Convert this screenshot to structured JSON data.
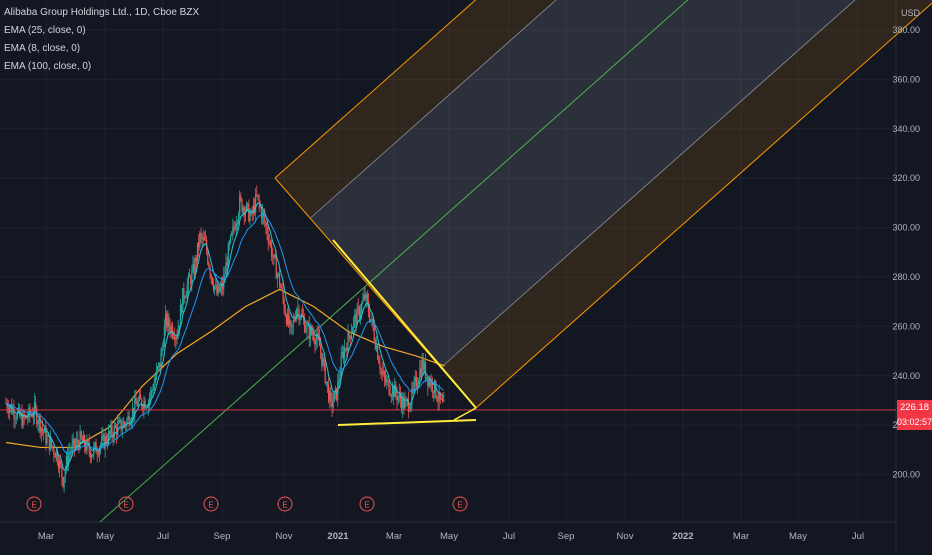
{
  "legend": {
    "title": "Alibaba Group Holdings Ltd., 1D, Cboe BZX",
    "ema1": "EMA (25, close, 0)",
    "ema2": "EMA (8, close, 0)",
    "ema3": "EMA (100, close, 0)"
  },
  "price_axis": {
    "currency": "USD",
    "current_price": "226.18",
    "countdown": "03:02:57"
  },
  "colors": {
    "background": "#131722",
    "up": "#26a69a",
    "down": "#ef5350",
    "ema25": "#2196f3",
    "ema8": "#26c6da",
    "ema100": "#f5a623",
    "pitchfork": "#ff9800",
    "median": "#4caf50",
    "pattern": "#ffeb3b",
    "price_line": "#f23645"
  },
  "chart_data": {
    "type": "candlestick",
    "title": "Alibaba Group Holdings Ltd., 1D, Cboe BZX",
    "x_ticks": [
      "Mar",
      "May",
      "Jul",
      "Sep",
      "Nov",
      "2021",
      "Mar",
      "May",
      "Jul",
      "Sep",
      "Nov",
      "2022",
      "Mar",
      "May",
      "Jul"
    ],
    "y_ticks": [
      200,
      220,
      240,
      260,
      280,
      300,
      320,
      340,
      360,
      380
    ],
    "ylim": [
      188,
      385
    ],
    "earnings_markers": [
      "E",
      "E",
      "E",
      "E",
      "E",
      "E"
    ],
    "price_path": [
      [
        0,
        229
      ],
      [
        3,
        222
      ],
      [
        5,
        226
      ],
      [
        7,
        215
      ],
      [
        9,
        208
      ],
      [
        10,
        198
      ],
      [
        11,
        209
      ],
      [
        13,
        214
      ],
      [
        15,
        209
      ],
      [
        17,
        213
      ],
      [
        19,
        218
      ],
      [
        21,
        221
      ],
      [
        23,
        229
      ],
      [
        25,
        230
      ],
      [
        27,
        245
      ],
      [
        28,
        262
      ],
      [
        30,
        257
      ],
      [
        31,
        272
      ],
      [
        33,
        283
      ],
      [
        34,
        296
      ],
      [
        35,
        293
      ],
      [
        36,
        281
      ],
      [
        37,
        273
      ],
      [
        38,
        276
      ],
      [
        39,
        290
      ],
      [
        40,
        300
      ],
      [
        41,
        310
      ],
      [
        42,
        308
      ],
      [
        43,
        304
      ],
      [
        44,
        312
      ],
      [
        45,
        305
      ],
      [
        46,
        297
      ],
      [
        47,
        286
      ],
      [
        48,
        278
      ],
      [
        49,
        266
      ],
      [
        50,
        257
      ],
      [
        51,
        268
      ],
      [
        52,
        263
      ],
      [
        53,
        258
      ],
      [
        54,
        257
      ],
      [
        55,
        252
      ],
      [
        56,
        240
      ],
      [
        57,
        228
      ],
      [
        58,
        233
      ],
      [
        59,
        248
      ],
      [
        60,
        255
      ],
      [
        61,
        262
      ],
      [
        62,
        266
      ],
      [
        63,
        272
      ],
      [
        64,
        263
      ],
      [
        65,
        252
      ],
      [
        66,
        240
      ],
      [
        67,
        236
      ],
      [
        68,
        234
      ],
      [
        69,
        231
      ],
      [
        70,
        228
      ],
      [
        71,
        230
      ],
      [
        72,
        238
      ],
      [
        73,
        245
      ],
      [
        74,
        239
      ],
      [
        75,
        236
      ],
      [
        76,
        230
      ],
      [
        77,
        226
      ]
    ],
    "ema100_path": [
      [
        0,
        213
      ],
      [
        6,
        211
      ],
      [
        12,
        211
      ],
      [
        18,
        219
      ],
      [
        24,
        236
      ],
      [
        30,
        249
      ],
      [
        36,
        258
      ],
      [
        42,
        268
      ],
      [
        48,
        275
      ],
      [
        54,
        268
      ],
      [
        60,
        258
      ],
      [
        66,
        252
      ],
      [
        72,
        248
      ],
      [
        77,
        244
      ]
    ],
    "current_price": 226.18,
    "annotations": {
      "support": 220.5,
      "pitchfork_pivots": [
        [
          46,
          320
        ],
        [
          80,
          223.5
        ]
      ]
    }
  }
}
